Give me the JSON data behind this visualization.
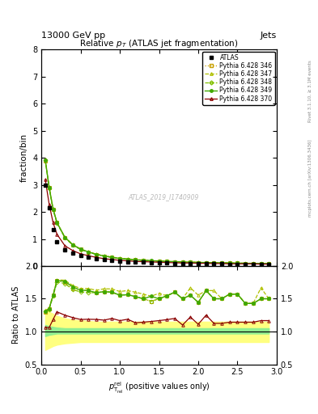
{
  "title": "Relative $p_{T}$ (ATLAS jet fragmentation)",
  "header_left": "13000 GeV pp",
  "header_right": "Jets",
  "ylabel_main": "fraction/bin",
  "ylabel_ratio": "Ratio to ATLAS",
  "xlabel": "$p_{\\textrm{T}}^{\\textrm{rel}}$ (positive values only)",
  "watermark": "ATLAS_2019_I1740909",
  "right_label": "Rivet 3.1.10, ≥ 3.1M events",
  "right_label2": "mcplots.cern.ch [arXiv:1306.3436]",
  "xlim": [
    0,
    3
  ],
  "ylim_main": [
    0,
    8
  ],
  "ylim_ratio": [
    0.5,
    2
  ],
  "x_data": [
    0.05,
    0.1,
    0.15,
    0.2,
    0.3,
    0.4,
    0.5,
    0.6,
    0.7,
    0.8,
    0.9,
    1.0,
    1.1,
    1.2,
    1.3,
    1.4,
    1.5,
    1.6,
    1.7,
    1.8,
    1.9,
    2.0,
    2.1,
    2.2,
    2.3,
    2.4,
    2.5,
    2.6,
    2.7,
    2.8,
    2.9
  ],
  "atlas_y": [
    3.0,
    2.15,
    1.35,
    0.9,
    0.6,
    0.47,
    0.38,
    0.32,
    0.27,
    0.23,
    0.2,
    0.18,
    0.16,
    0.15,
    0.14,
    0.13,
    0.12,
    0.11,
    0.1,
    0.1,
    0.09,
    0.09,
    0.08,
    0.08,
    0.08,
    0.07,
    0.07,
    0.07,
    0.07,
    0.06,
    0.06
  ],
  "p346_y": [
    3.9,
    2.9,
    2.1,
    1.6,
    1.05,
    0.78,
    0.62,
    0.52,
    0.43,
    0.37,
    0.32,
    0.28,
    0.25,
    0.23,
    0.21,
    0.19,
    0.18,
    0.17,
    0.16,
    0.15,
    0.14,
    0.13,
    0.13,
    0.12,
    0.12,
    0.11,
    0.11,
    0.1,
    0.1,
    0.09,
    0.09
  ],
  "p347_y": [
    3.95,
    2.92,
    2.12,
    1.61,
    1.07,
    0.8,
    0.63,
    0.53,
    0.44,
    0.38,
    0.33,
    0.29,
    0.26,
    0.24,
    0.22,
    0.2,
    0.19,
    0.17,
    0.16,
    0.15,
    0.15,
    0.14,
    0.13,
    0.13,
    0.12,
    0.11,
    0.11,
    0.1,
    0.1,
    0.1,
    0.09
  ],
  "p348_y": [
    3.92,
    2.88,
    2.08,
    1.58,
    1.04,
    0.77,
    0.61,
    0.51,
    0.43,
    0.37,
    0.32,
    0.28,
    0.25,
    0.23,
    0.21,
    0.19,
    0.18,
    0.17,
    0.16,
    0.15,
    0.14,
    0.13,
    0.13,
    0.12,
    0.12,
    0.11,
    0.11,
    0.1,
    0.1,
    0.09,
    0.09
  ],
  "p349_y": [
    3.93,
    2.9,
    2.1,
    1.6,
    1.06,
    0.79,
    0.62,
    0.52,
    0.43,
    0.37,
    0.32,
    0.28,
    0.25,
    0.23,
    0.21,
    0.2,
    0.18,
    0.17,
    0.16,
    0.15,
    0.14,
    0.13,
    0.13,
    0.12,
    0.12,
    0.11,
    0.11,
    0.1,
    0.1,
    0.09,
    0.09
  ],
  "p370_y": [
    3.2,
    2.28,
    1.6,
    1.17,
    0.75,
    0.57,
    0.45,
    0.38,
    0.32,
    0.27,
    0.24,
    0.21,
    0.19,
    0.17,
    0.16,
    0.15,
    0.14,
    0.13,
    0.12,
    0.11,
    0.11,
    0.1,
    0.1,
    0.09,
    0.09,
    0.08,
    0.08,
    0.08,
    0.08,
    0.07,
    0.07
  ],
  "band_green_low": [
    0.93,
    0.95,
    0.96,
    0.97,
    0.97,
    0.97,
    0.97,
    0.97,
    0.97,
    0.97,
    0.97,
    0.97,
    0.97,
    0.97,
    0.97,
    0.97,
    0.97,
    0.97,
    0.97,
    0.97,
    0.97,
    0.97,
    0.97,
    0.97,
    0.97,
    0.97,
    0.97,
    0.97,
    0.97,
    0.97,
    0.97
  ],
  "band_green_high": [
    1.1,
    1.08,
    1.07,
    1.06,
    1.05,
    1.05,
    1.05,
    1.05,
    1.05,
    1.05,
    1.05,
    1.05,
    1.05,
    1.05,
    1.05,
    1.05,
    1.05,
    1.05,
    1.05,
    1.05,
    1.05,
    1.05,
    1.05,
    1.05,
    1.05,
    1.05,
    1.05,
    1.05,
    1.05,
    1.05,
    1.05
  ],
  "band_yellow_low": [
    0.72,
    0.75,
    0.78,
    0.8,
    0.82,
    0.83,
    0.84,
    0.84,
    0.84,
    0.84,
    0.84,
    0.84,
    0.84,
    0.84,
    0.84,
    0.84,
    0.84,
    0.84,
    0.84,
    0.84,
    0.84,
    0.84,
    0.84,
    0.84,
    0.84,
    0.84,
    0.84,
    0.84,
    0.84,
    0.84,
    0.84
  ],
  "band_yellow_high": [
    1.35,
    1.3,
    1.27,
    1.24,
    1.2,
    1.18,
    1.17,
    1.16,
    1.15,
    1.15,
    1.15,
    1.15,
    1.15,
    1.15,
    1.15,
    1.15,
    1.15,
    1.15,
    1.15,
    1.15,
    1.15,
    1.15,
    1.15,
    1.15,
    1.15,
    1.15,
    1.15,
    1.15,
    1.15,
    1.15,
    1.15
  ],
  "color_346": "#c8a000",
  "color_347": "#b0c000",
  "color_348": "#80c000",
  "color_349": "#40a800",
  "color_370": "#8b0000",
  "color_atlas": "#000000",
  "color_band_green": "#90ee90",
  "color_band_yellow": "#ffff80",
  "legend_labels": [
    "ATLAS",
    "Pythia 6.428 346",
    "Pythia 6.428 347",
    "Pythia 6.428 348",
    "Pythia 6.428 349",
    "Pythia 6.428 370"
  ]
}
